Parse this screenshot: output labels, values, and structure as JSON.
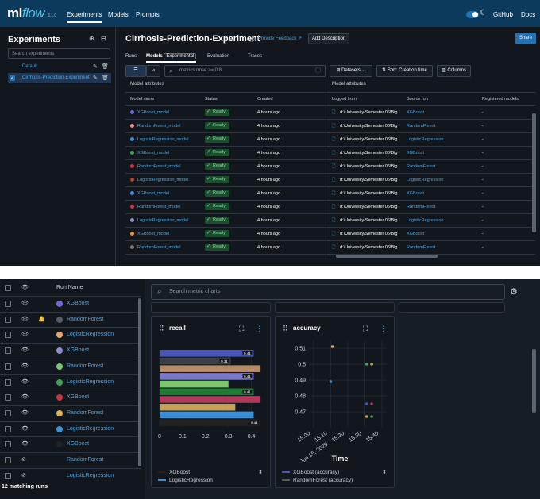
{
  "colors": {
    "accent": "#2272b4",
    "ready_bg": "#1c4d2e",
    "ready_text": "#7ddc9b",
    "link": "#4fa3e0"
  },
  "nav": {
    "logo_ml": "ml",
    "logo_flow": "flow",
    "version": "3.1.0",
    "experiments": "Experiments",
    "models": "Models",
    "prompts": "Prompts",
    "github": "GitHub",
    "docs": "Docs"
  },
  "sidebar": {
    "title": "Experiments",
    "search_placeholder": "Search experiments",
    "items": [
      {
        "label": "Default"
      },
      {
        "label": "Cirrhosis-Prediction-Experiment"
      }
    ]
  },
  "main": {
    "title": "Cirrhosis-Prediction-Experiment",
    "feedback": "Provide Feedback",
    "add_description": "Add Description",
    "share": "Share",
    "tabs": [
      "Runs",
      "Models",
      "Experimental",
      "Evaluation",
      "Traces"
    ],
    "filter_placeholder": "metrics.rmse >= 0.8",
    "datasets": "Datasets",
    "sort": "Sort: Creation time",
    "columns": "Columns",
    "group_left": "Model attributes",
    "group_right": "Model attributes",
    "headers": [
      "Model name",
      "Status",
      "Created",
      "Logged from",
      "Source run",
      "Registered models"
    ],
    "rows": [
      {
        "name": "XGBoost_model",
        "status": "Ready",
        "created": "4 hours ago",
        "logged": "d:\\University\\Semester 06\\Big I",
        "source": "XGBoost",
        "registered": "-",
        "color": "#6f6ad2"
      },
      {
        "name": "RandomForest_model",
        "status": "Ready",
        "created": "4 hours ago",
        "logged": "d:\\University\\Semester 06\\Big I",
        "source": "RandomForest",
        "registered": "-",
        "color": "#e9898f"
      },
      {
        "name": "LogisticRegression_model",
        "status": "Ready",
        "created": "4 hours ago",
        "logged": "d:\\University\\Semester 06\\Big I",
        "source": "LogisticRegression",
        "registered": "-",
        "color": "#3b8fd6"
      },
      {
        "name": "XGBoost_model",
        "status": "Ready",
        "created": "4 hours ago",
        "logged": "d:\\University\\Semester 06\\Big I",
        "source": "XGBoost",
        "registered": "-",
        "color": "#41a05c"
      },
      {
        "name": "RandomForest_model",
        "status": "Ready",
        "created": "4 hours ago",
        "logged": "d:\\University\\Semester 06\\Big I",
        "source": "RandomForest",
        "registered": "-",
        "color": "#c7344a"
      },
      {
        "name": "LogisticRegression_model",
        "status": "Ready",
        "created": "4 hours ago",
        "logged": "d:\\University\\Semester 06\\Big I",
        "source": "LogisticRegression",
        "registered": "-",
        "color": "#b9402f"
      },
      {
        "name": "XGBoost_model",
        "status": "Ready",
        "created": "4 hours ago",
        "logged": "d:\\University\\Semester 06\\Big I",
        "source": "XGBoost",
        "registered": "-",
        "color": "#3b8fd6"
      },
      {
        "name": "RandomForest_model",
        "status": "Ready",
        "created": "4 hours ago",
        "logged": "d:\\University\\Semester 06\\Big I",
        "source": "RandomForest",
        "registered": "-",
        "color": "#c7344a"
      },
      {
        "name": "LogisticRegression_model",
        "status": "Ready",
        "created": "4 hours ago",
        "logged": "d:\\University\\Semester 06\\Big I",
        "source": "LogisticRegression",
        "registered": "-",
        "color": "#8c8cd0"
      },
      {
        "name": "XGBoost_model",
        "status": "Ready",
        "created": "4 hours ago",
        "logged": "d:\\University\\Semester 06\\Big I",
        "source": "XGBoost",
        "registered": "-",
        "color": "#e3972d"
      },
      {
        "name": "RandomForest_model",
        "status": "Ready",
        "created": "4 hours ago",
        "logged": "d:\\University\\Semester 06\\Big I",
        "source": "RandomForest",
        "registered": "-",
        "color": "#777777"
      }
    ]
  },
  "runs": {
    "header": "Run Name",
    "matching": "12 matching runs",
    "items": [
      {
        "name": "XGBoost",
        "color": "#6f6ad2",
        "pinned": false,
        "hidden": false
      },
      {
        "name": "RandomForest",
        "color": "#555a60",
        "pinned": true,
        "hidden": false
      },
      {
        "name": "LogisticRegression",
        "color": "#e9a76b",
        "pinned": false,
        "hidden": false
      },
      {
        "name": "XGBoost",
        "color": "#8c8cd0",
        "pinned": false,
        "hidden": false
      },
      {
        "name": "RandomForest",
        "color": "#7bc86c",
        "pinned": false,
        "hidden": false
      },
      {
        "name": "LogisticRegression",
        "color": "#41a05c",
        "pinned": false,
        "hidden": false
      },
      {
        "name": "XGBoost",
        "color": "#c7344a",
        "pinned": false,
        "hidden": false
      },
      {
        "name": "RandomForest",
        "color": "#e3b34d",
        "pinned": false,
        "hidden": false
      },
      {
        "name": "LogisticRegression",
        "color": "#3b8fd6",
        "pinned": false,
        "hidden": false
      },
      {
        "name": "XGBoost",
        "color": "#222222",
        "pinned": false,
        "hidden": false
      },
      {
        "name": "RandomForest",
        "color": "",
        "pinned": false,
        "hidden": true
      },
      {
        "name": "LogisticRegression",
        "color": "",
        "pinned": false,
        "hidden": true
      }
    ]
  },
  "charts": {
    "search_placeholder": "Search metric charts",
    "recall": {
      "title": "recall"
    },
    "accuracy": {
      "title": "accuracy",
      "xlabel": "Time",
      "date_label": "Jun 15, 2025"
    }
  },
  "chart_data": [
    {
      "type": "bar",
      "title": "recall",
      "orientation": "horizontal",
      "xlim": [
        0,
        0.45
      ],
      "xticks": [
        0,
        0.1,
        0.2,
        0.3,
        0.4
      ],
      "bars": [
        {
          "value": 0.41,
          "color": "#4a55b8",
          "label": "0.41"
        },
        {
          "value": 0.31,
          "color": "#3a3f46",
          "label": "0.31"
        },
        {
          "value": 0.44,
          "color": "#b58a66",
          "label": ""
        },
        {
          "value": 0.41,
          "color": "#7a78c8",
          "label": "0.41"
        },
        {
          "value": 0.3,
          "color": "#7bc86c",
          "label": ""
        },
        {
          "value": 0.41,
          "color": "#1f7a33",
          "label": "0.41"
        },
        {
          "value": 0.44,
          "color": "#b03a5a",
          "label": ""
        },
        {
          "value": 0.33,
          "color": "#c9a25a",
          "label": ""
        },
        {
          "value": 0.41,
          "color": "#3b8fd6",
          "label": ""
        },
        {
          "value": 0.44,
          "color": "#222222",
          "label": "0.44"
        }
      ],
      "legend": [
        {
          "name": "XGBoost",
          "color": "#222222"
        },
        {
          "name": "LogisticRegression",
          "color": "#3b8fd6"
        }
      ]
    },
    {
      "type": "scatter",
      "title": "accuracy",
      "xlabel": "Time",
      "ylim": [
        0.46,
        0.515
      ],
      "yticks": [
        0.47,
        0.48,
        0.49,
        0.5,
        0.51
      ],
      "xticks": [
        "15:00",
        "15:10",
        "15:20",
        "15:30",
        "15:40"
      ],
      "points": [
        {
          "x": "15:11",
          "y": 0.511,
          "color": "#e9a76b"
        },
        {
          "x": "15:10",
          "y": 0.489,
          "color": "#3b8fd6"
        },
        {
          "x": "15:31",
          "y": 0.5,
          "color": "#41a05c"
        },
        {
          "x": "15:34",
          "y": 0.5,
          "color": "#c9a25a"
        },
        {
          "x": "15:31",
          "y": 0.475,
          "color": "#4a55b8"
        },
        {
          "x": "15:34",
          "y": 0.475,
          "color": "#b03a5a"
        },
        {
          "x": "15:31",
          "y": 0.467,
          "color": "#c9a25a"
        },
        {
          "x": "15:34",
          "y": 0.467,
          "color": "#41a05c"
        }
      ],
      "legend": [
        {
          "name": "XGBoost (accuracy)",
          "color": "#4a55b8"
        },
        {
          "name": "RandomForest (accuracy)",
          "color": "#555a60"
        }
      ]
    }
  ]
}
